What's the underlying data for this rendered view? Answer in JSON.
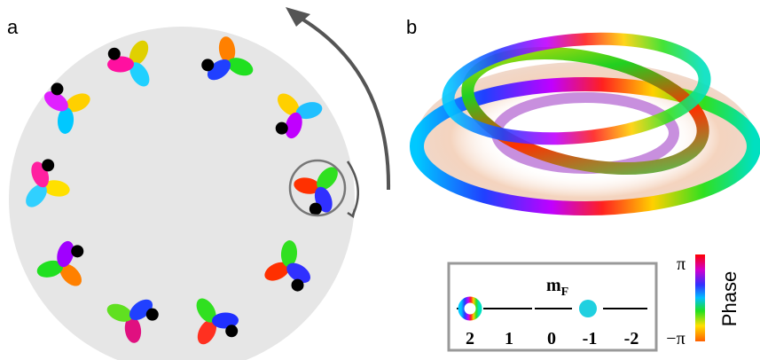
{
  "panels": {
    "a": {
      "label": "a"
    },
    "b": {
      "label": "b"
    }
  },
  "legend": {
    "title": "m",
    "title_subscript": "F",
    "levels": [
      "2",
      "1",
      "0",
      "-1",
      "-2"
    ]
  },
  "colorbar": {
    "top": "π",
    "bottom": "−π",
    "label": "Phase"
  }
}
